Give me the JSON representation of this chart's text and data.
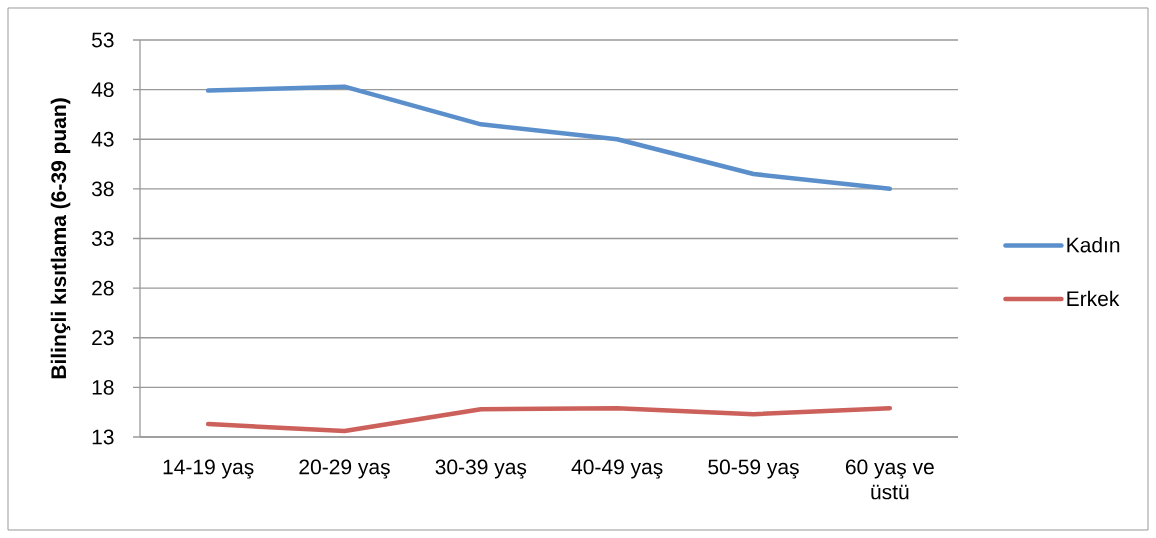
{
  "chart_data": {
    "type": "line",
    "ylabel": "Bilinçli kısıtlama (6-39 puan)",
    "categories": [
      "14-19 yaş",
      "20-29 yaş",
      "30-39 yaş",
      "40-49 yaş",
      "50-59 yaş",
      "60 yaş ve üstü"
    ],
    "series": [
      {
        "name": "Kadın",
        "color": "#5a8fcb",
        "values": [
          47.9,
          48.3,
          44.5,
          43.0,
          39.5,
          38.0
        ]
      },
      {
        "name": "Erkek",
        "color": "#cc605a",
        "values": [
          14.3,
          13.6,
          15.8,
          15.9,
          15.3,
          15.9
        ]
      }
    ],
    "ylim": [
      13,
      53
    ],
    "yticks": [
      13,
      18,
      23,
      28,
      33,
      38,
      43,
      48,
      53
    ],
    "grid": "y",
    "legend": "right",
    "marker": "none",
    "line_style": "solid"
  }
}
